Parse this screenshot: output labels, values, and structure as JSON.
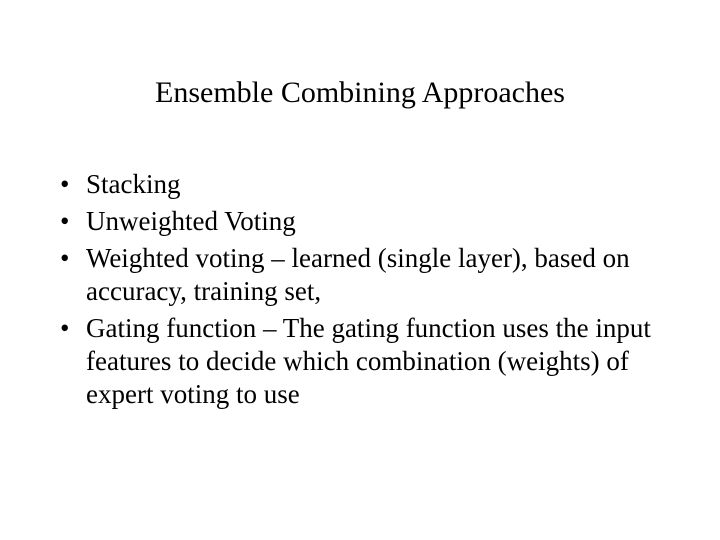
{
  "slide": {
    "title": "Ensemble Combining Approaches",
    "bullets": [
      "Stacking",
      "Unweighted Voting",
      "Weighted voting – learned (single layer), based on accuracy, training set,",
      "Gating function – The gating function uses the input features to decide which combination (weights) of expert voting to use"
    ],
    "background_color": "#ffffff",
    "text_color": "#000000",
    "title_fontsize": 30,
    "body_fontsize": 27,
    "font_family": "Times New Roman"
  }
}
